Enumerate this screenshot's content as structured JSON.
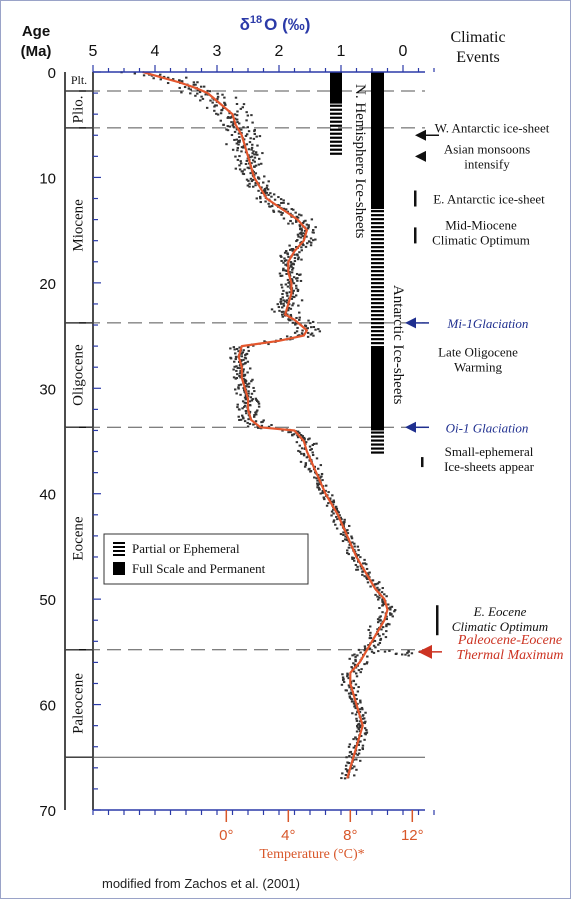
{
  "colors": {
    "axis_blue": "#2b3aa8",
    "temperature_red": "#d8572a",
    "curve": "#e4572e",
    "points": "#333333",
    "mi_blue": "#1f2f8f",
    "petm_red": "#cc3322",
    "text": "#111111"
  },
  "header": {
    "age_label": "Age",
    "ma_label": "(Ma)",
    "delta_symbol": "δ",
    "delta_superscript": "18",
    "delta_rest": "O (‰)",
    "climatic_label": "Climatic",
    "events_label": "Events"
  },
  "footer": {
    "credit": "modified from Zachos et al. (2001)"
  },
  "epochs": [
    {
      "name": "Plt.",
      "from": 0,
      "to": 1.8
    },
    {
      "name": "Plio.",
      "from": 1.8,
      "to": 5.3
    },
    {
      "name": "Miocene",
      "from": 5.3,
      "to": 23.8
    },
    {
      "name": "Oligocene",
      "from": 23.8,
      "to": 33.7
    },
    {
      "name": "Eocene",
      "from": 33.7,
      "to": 54.8
    },
    {
      "name": "Paleocene",
      "from": 54.8,
      "to": 65.0
    }
  ],
  "boundary_lines": [
    {
      "age": 1.8,
      "style": "dashed"
    },
    {
      "age": 5.3,
      "style": "dashed"
    },
    {
      "age": 23.8,
      "style": "dashed"
    },
    {
      "age": 33.7,
      "style": "dashed"
    },
    {
      "age": 54.8,
      "style": "dashed"
    },
    {
      "age": 65.0,
      "style": "solid"
    }
  ],
  "ice_sheets": {
    "n_hemisphere_label": "N. Hemisphere Ice-sheets",
    "antarctic_label": "Antarctic Ice-sheets",
    "n_hemisphere_bars": [
      {
        "from": 0,
        "to": 3.0,
        "type": "full"
      },
      {
        "from": 3.0,
        "to": 7.8,
        "type": "partial"
      }
    ],
    "antarctic_bars": [
      {
        "from": 0,
        "to": 13.0,
        "type": "full"
      },
      {
        "from": 13.0,
        "to": 26.0,
        "type": "partial"
      },
      {
        "from": 26.0,
        "to": 34.0,
        "type": "full"
      },
      {
        "from": 34.0,
        "to": 36.0,
        "type": "partial"
      }
    ]
  },
  "legend": {
    "partial": "Partial or Ephemeral",
    "full": "Full Scale and Permanent"
  },
  "events": [
    {
      "label": "W. Antarctic ice-sheet",
      "age": 6.0,
      "marker": "arrow",
      "style": "normal"
    },
    {
      "label": "Asian monsoons intensify",
      "age": 8.0,
      "marker": "arrow",
      "style": "normal"
    },
    {
      "label": "E. Antarctic ice-sheet",
      "age": 12.0,
      "marker": "bar",
      "style": "normal"
    },
    {
      "label": "Mid-Miocene Climatic Optimum",
      "age": 15.5,
      "marker": "bar",
      "style": "normal"
    },
    {
      "label": "Mi-1Glaciation",
      "age": 23.8,
      "marker": "arrow",
      "style": "italic-blue"
    },
    {
      "label": "Late Oligocene Warming",
      "age": 27.0,
      "marker": "none",
      "style": "normal"
    },
    {
      "label": "Oi-1 Glaciation",
      "age": 33.7,
      "marker": "arrow",
      "style": "italic-blue"
    },
    {
      "label": "Small-ephemeral Ice-sheets appear",
      "age": 37.0,
      "marker": "bar",
      "style": "normal"
    },
    {
      "label": "E. Eocene Climatic Optimum",
      "age": 52.0,
      "marker": "bar",
      "style": "italic"
    },
    {
      "label": "Paleocene-Eocene Thermal Maximum",
      "age": 55.0,
      "marker": "arrow",
      "style": "italic-red"
    }
  ],
  "chart_data": {
    "type": "scatter",
    "xlabel": "δ18O (‰)",
    "x2label": "Temperature (°C)*",
    "ylabel": "Age (Ma)",
    "xlim": [
      5,
      -0.5
    ],
    "ylim": [
      0,
      70
    ],
    "x_ticks": [
      5,
      4,
      3,
      2,
      1,
      0
    ],
    "y_ticks": [
      0,
      10,
      20,
      30,
      40,
      50,
      60,
      70
    ],
    "temperature_ticks": [
      "0°",
      "4°",
      "8°",
      "12°"
    ],
    "temperature_tick_delta18O": [
      2.85,
      1.85,
      0.85,
      -0.15
    ],
    "series": [
      {
        "type": "smoothed_curve",
        "points": [
          {
            "age": 0,
            "d18o": 4.2
          },
          {
            "age": 0.5,
            "d18o": 3.9
          },
          {
            "age": 1,
            "d18o": 3.6
          },
          {
            "age": 1.5,
            "d18o": 3.35
          },
          {
            "age": 2,
            "d18o": 3.15
          },
          {
            "age": 3,
            "d18o": 2.95
          },
          {
            "age": 4,
            "d18o": 2.75
          },
          {
            "age": 5,
            "d18o": 2.7
          },
          {
            "age": 6,
            "d18o": 2.6
          },
          {
            "age": 7,
            "d18o": 2.55
          },
          {
            "age": 8,
            "d18o": 2.5
          },
          {
            "age": 9,
            "d18o": 2.45
          },
          {
            "age": 10,
            "d18o": 2.4
          },
          {
            "age": 11,
            "d18o": 2.3
          },
          {
            "age": 12,
            "d18o": 2.2
          },
          {
            "age": 13,
            "d18o": 1.95
          },
          {
            "age": 14,
            "d18o": 1.7
          },
          {
            "age": 15,
            "d18o": 1.55
          },
          {
            "age": 16,
            "d18o": 1.6
          },
          {
            "age": 17,
            "d18o": 1.75
          },
          {
            "age": 18,
            "d18o": 1.85
          },
          {
            "age": 19,
            "d18o": 1.85
          },
          {
            "age": 20,
            "d18o": 1.8
          },
          {
            "age": 21,
            "d18o": 1.8
          },
          {
            "age": 22,
            "d18o": 1.85
          },
          {
            "age": 23,
            "d18o": 1.9
          },
          {
            "age": 23.5,
            "d18o": 1.75
          },
          {
            "age": 24,
            "d18o": 1.65
          },
          {
            "age": 24.5,
            "d18o": 1.55
          },
          {
            "age": 25,
            "d18o": 1.6
          },
          {
            "age": 25.5,
            "d18o": 2.0
          },
          {
            "age": 26,
            "d18o": 2.6
          },
          {
            "age": 27,
            "d18o": 2.65
          },
          {
            "age": 28,
            "d18o": 2.6
          },
          {
            "age": 29,
            "d18o": 2.6
          },
          {
            "age": 30,
            "d18o": 2.55
          },
          {
            "age": 31,
            "d18o": 2.5
          },
          {
            "age": 32,
            "d18o": 2.5
          },
          {
            "age": 33,
            "d18o": 2.45
          },
          {
            "age": 33.7,
            "d18o": 2.3
          },
          {
            "age": 34,
            "d18o": 1.75
          },
          {
            "age": 35,
            "d18o": 1.6
          },
          {
            "age": 36,
            "d18o": 1.55
          },
          {
            "age": 38,
            "d18o": 1.4
          },
          {
            "age": 40,
            "d18o": 1.25
          },
          {
            "age": 42,
            "d18o": 1.05
          },
          {
            "age": 44,
            "d18o": 0.9
          },
          {
            "age": 46,
            "d18o": 0.75
          },
          {
            "age": 48,
            "d18o": 0.55
          },
          {
            "age": 49,
            "d18o": 0.45
          },
          {
            "age": 50,
            "d18o": 0.3
          },
          {
            "age": 51,
            "d18o": 0.25
          },
          {
            "age": 52,
            "d18o": 0.3
          },
          {
            "age": 53,
            "d18o": 0.4
          },
          {
            "age": 54,
            "d18o": 0.5
          },
          {
            "age": 55,
            "d18o": 0.6
          },
          {
            "age": 56,
            "d18o": 0.7
          },
          {
            "age": 57,
            "d18o": 0.85
          },
          {
            "age": 58,
            "d18o": 0.85
          },
          {
            "age": 59,
            "d18o": 0.8
          },
          {
            "age": 60,
            "d18o": 0.75
          },
          {
            "age": 61,
            "d18o": 0.7
          },
          {
            "age": 62,
            "d18o": 0.65
          },
          {
            "age": 63,
            "d18o": 0.7
          },
          {
            "age": 64,
            "d18o": 0.75
          },
          {
            "age": 65,
            "d18o": 0.8
          },
          {
            "age": 66,
            "d18o": 0.85
          },
          {
            "age": 67,
            "d18o": 0.9
          }
        ]
      },
      {
        "type": "data_points",
        "spread_d18o": [
          {
            "age": 0,
            "spread": 0.6
          },
          {
            "age": 2,
            "spread": 0.5
          },
          {
            "age": 5,
            "spread": 0.35
          },
          {
            "age": 10,
            "spread": 0.25
          },
          {
            "age": 14,
            "spread": 0.25
          },
          {
            "age": 20,
            "spread": 0.2
          },
          {
            "age": 24,
            "spread": 0.3
          },
          {
            "age": 28,
            "spread": 0.15
          },
          {
            "age": 33,
            "spread": 0.25
          },
          {
            "age": 40,
            "spread": 0.12
          },
          {
            "age": 50,
            "spread": 0.15
          },
          {
            "age": 55,
            "spread": 0.25
          },
          {
            "age": 60,
            "spread": 0.12
          },
          {
            "age": 67,
            "spread": 0.15
          }
        ]
      }
    ]
  }
}
